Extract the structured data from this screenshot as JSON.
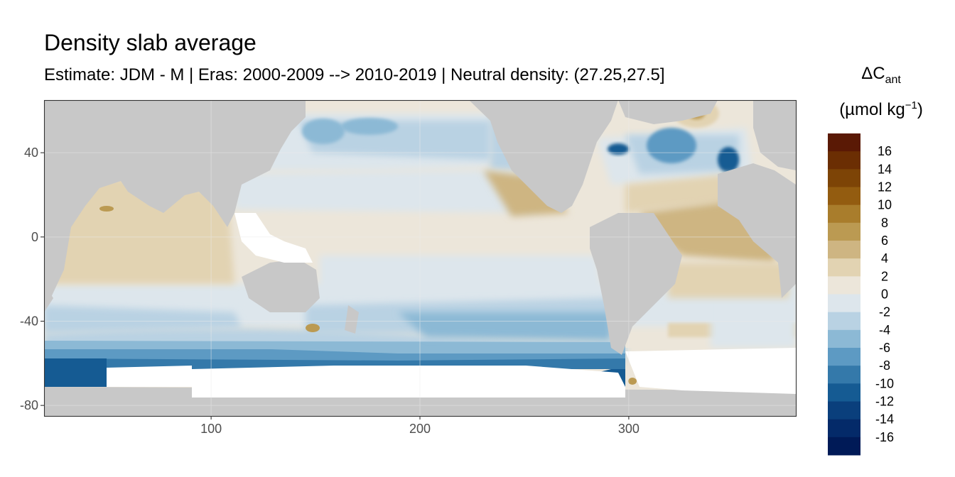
{
  "title": "Density slab average",
  "subtitle": "Estimate: JDM - M | Eras: 2000-2009 --> 2010-2019 | Neutral density: (27.25,27.5]",
  "legend": {
    "title_symbol": "ΔC",
    "title_subscript": "ant",
    "unit_main": "(µmol kg",
    "unit_exp": "−1",
    "unit_close": ")",
    "labels": [
      "16",
      "14",
      "12",
      "10",
      "8",
      "6",
      "4",
      "2",
      "0",
      "-2",
      "-4",
      "-6",
      "-8",
      "-10",
      "-12",
      "-14",
      "-16"
    ],
    "colors": [
      "#5a1905",
      "#6b2e03",
      "#7d4406",
      "#935c10",
      "#a97d2c",
      "#bb9a52",
      "#ceb582",
      "#e2d3b2",
      "#ece6da",
      "#dde6ec",
      "#b9d2e3",
      "#8cb9d5",
      "#5d9ac3",
      "#3479aa",
      "#155b93",
      "#0a3f7c",
      "#042a69",
      "#001a57"
    ]
  },
  "chart_data": {
    "type": "heatmap",
    "title": "Density slab average",
    "xlabel": "",
    "ylabel": "",
    "xlim": [
      20,
      380
    ],
    "ylim": [
      -85,
      65
    ],
    "x_ticks": [
      100,
      200,
      300
    ],
    "y_ticks": [
      40,
      0,
      -40,
      -80
    ],
    "grid": true,
    "legend_position": "right",
    "value_range": [
      -17,
      17
    ],
    "colors": {
      "land": "#c8c8c8",
      "no_data": "#ffffff"
    }
  }
}
